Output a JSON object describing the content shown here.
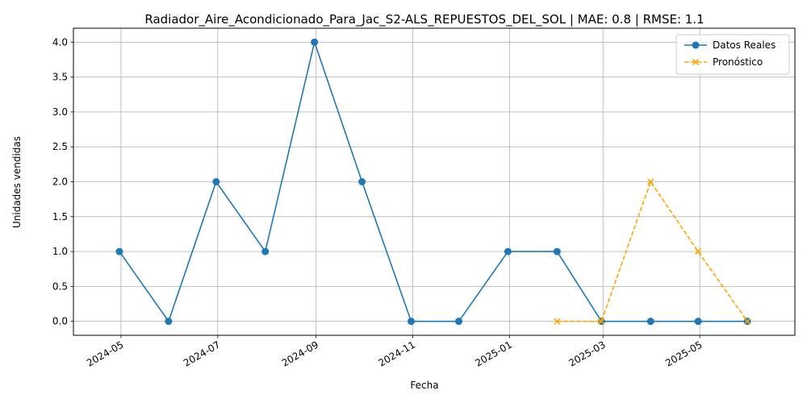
{
  "chart_data": {
    "type": "line",
    "title": "Radiador_Aire_Acondicionado_Para_Jac_S2-ALS_REPUESTOS_DEL_SOL | MAE: 0.8 | RMSE: 1.1",
    "xlabel": "Fecha",
    "ylabel": "Unidades vendidas",
    "xlim": [
      "2024-04-01",
      "2025-06-30"
    ],
    "ylim": [
      -0.2,
      4.2
    ],
    "x_ticks": [
      "2024-05",
      "2024-07",
      "2024-09",
      "2024-11",
      "2025-01",
      "2025-03",
      "2025-05"
    ],
    "y_ticks": [
      "0.0",
      "0.5",
      "1.0",
      "1.5",
      "2.0",
      "2.5",
      "3.0",
      "3.5",
      "4.0"
    ],
    "grid": true,
    "legend_position": "top-right",
    "series": [
      {
        "name": "Datos Reales",
        "color": "#1f77b4",
        "line_style": "solid",
        "marker": "circle",
        "x": [
          "2024-04-30",
          "2024-05-31",
          "2024-06-30",
          "2024-07-31",
          "2024-08-31",
          "2024-09-30",
          "2024-10-31",
          "2024-11-30",
          "2024-12-31",
          "2025-01-31",
          "2025-02-28",
          "2025-03-31",
          "2025-04-30",
          "2025-05-31"
        ],
        "values": [
          1,
          0,
          2,
          1,
          4,
          2,
          0,
          0,
          1,
          1,
          0,
          0,
          0,
          0
        ]
      },
      {
        "name": "Pronóstico",
        "color": "#ffa500",
        "line_style": "dashed",
        "marker": "x",
        "x": [
          "2025-01-31",
          "2025-02-28",
          "2025-03-31",
          "2025-04-30",
          "2025-05-31"
        ],
        "values": [
          0,
          0,
          2,
          1,
          0
        ]
      }
    ]
  }
}
